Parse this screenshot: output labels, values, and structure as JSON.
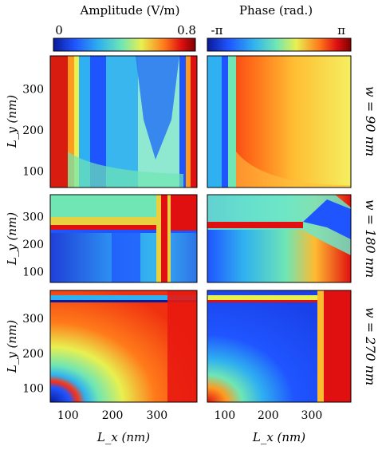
{
  "figure": {
    "col_titles": [
      "Amplitude (V/m)",
      "Phase (rad.)"
    ],
    "colorbars": [
      {
        "min_label": "0",
        "max_label": "0.8",
        "range": [
          0,
          0.8
        ]
      },
      {
        "min_label": "-π",
        "max_label": "π",
        "range": [
          -3.1416,
          3.1416
        ]
      }
    ],
    "row_labels": [
      "w = 90 nm",
      "w = 180 nm",
      "w = 270 nm"
    ],
    "ylabel": "L_y (nm)",
    "xlabel": "L_x (nm)",
    "colormap": [
      "#0a1a9a",
      "#1f55ff",
      "#2fb0f0",
      "#6fe6b4",
      "#e8f050",
      "#ff7a1a",
      "#e01010",
      "#800000"
    ]
  },
  "chart_data": {
    "type": "heatmap",
    "xlabel": "L_x (nm)",
    "ylabel": "L_y (nm)",
    "xlim": [
      60,
      390
    ],
    "ylim": [
      60,
      380
    ],
    "xticks": [
      100,
      200,
      300
    ],
    "yticks": [
      100,
      200,
      300
    ],
    "panels": [
      {
        "row": "w = 90 nm",
        "quantity": "Amplitude (V/m)"
      },
      {
        "row": "w = 90 nm",
        "quantity": "Phase (rad.)"
      },
      {
        "row": "w = 180 nm",
        "quantity": "Amplitude (V/m)"
      },
      {
        "row": "w = 180 nm",
        "quantity": "Phase (rad.)"
      },
      {
        "row": "w = 270 nm",
        "quantity": "Amplitude (V/m)"
      },
      {
        "row": "w = 270 nm",
        "quantity": "Phase (rad.)"
      }
    ]
  }
}
